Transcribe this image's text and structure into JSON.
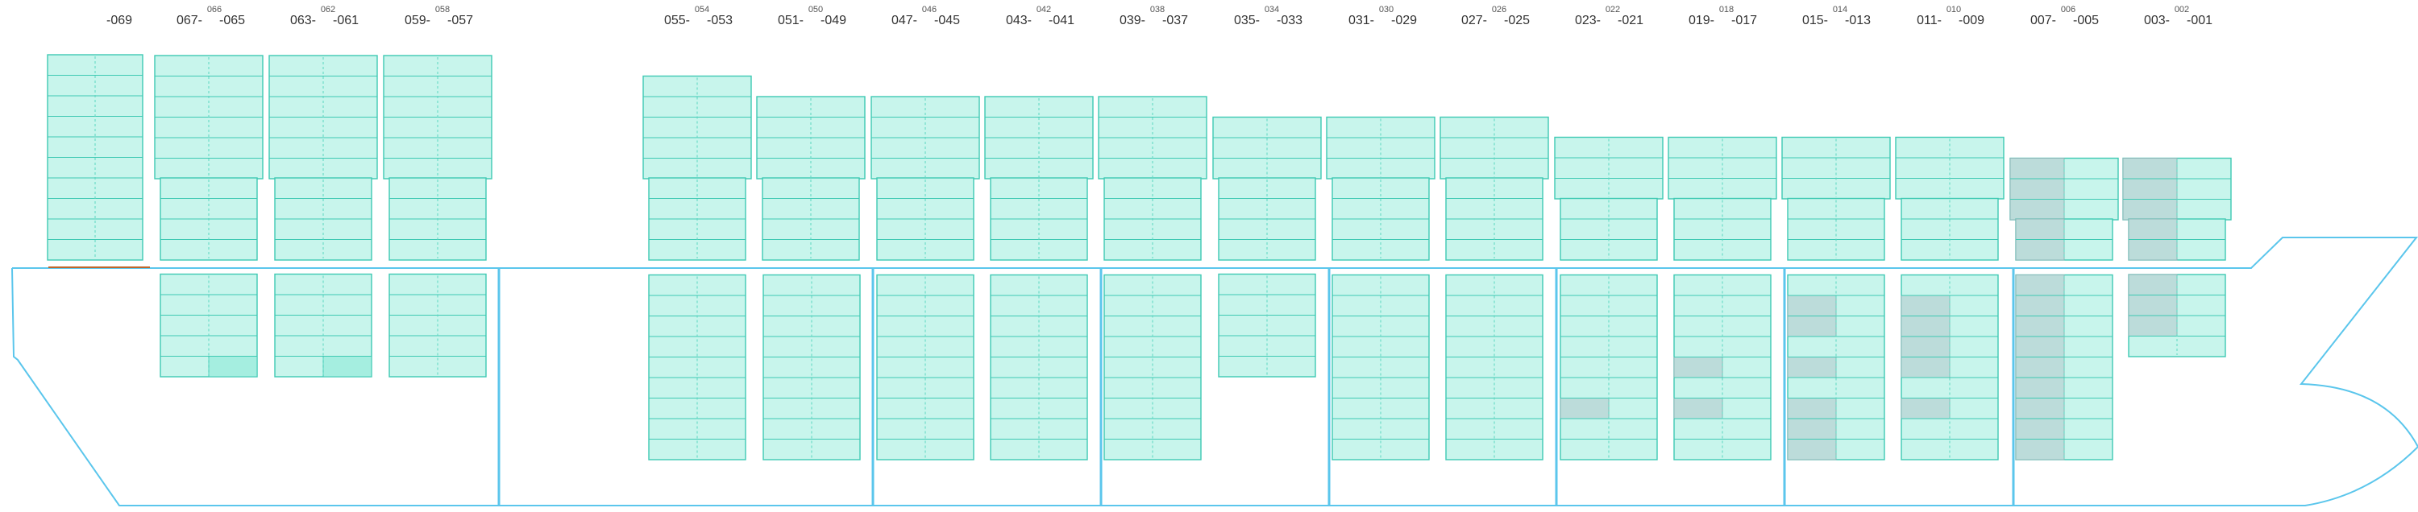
{
  "colors": {
    "hull": "#5bc6ec",
    "cell_fill": "#c8f5ec",
    "cell_stroke": "#3ec9b3",
    "cell_divider": "#5ad6c0",
    "cell_occupied": "#bcdcda",
    "cell_occupied_stroke": "#8ab7b8",
    "cell_highlight": "#a5eee0",
    "bay_label": "#333333",
    "bay_label_small": "#555555",
    "accent_line": "#c0662a"
  },
  "bays": [
    {
      "id": "bay-069",
      "left": "069",
      "right": "",
      "mid": ""
    },
    {
      "id": "bay-067-065",
      "left": "067",
      "right": "065",
      "mid": "066"
    },
    {
      "id": "bay-063-061",
      "left": "063",
      "right": "061",
      "mid": "062"
    },
    {
      "id": "bay-059-057",
      "left": "059",
      "right": "057",
      "mid": "058"
    },
    {
      "id": "bay-055-053",
      "left": "055",
      "right": "053",
      "mid": "054"
    },
    {
      "id": "bay-051-049",
      "left": "051",
      "right": "049",
      "mid": "050"
    },
    {
      "id": "bay-047-045",
      "left": "047",
      "right": "045",
      "mid": "046"
    },
    {
      "id": "bay-043-041",
      "left": "043",
      "right": "041",
      "mid": "042"
    },
    {
      "id": "bay-039-037",
      "left": "039",
      "right": "037",
      "mid": "038"
    },
    {
      "id": "bay-035-033",
      "left": "035",
      "right": "033",
      "mid": "034"
    },
    {
      "id": "bay-031-029",
      "left": "031",
      "right": "029",
      "mid": "030"
    },
    {
      "id": "bay-027-025",
      "left": "027",
      "right": "025",
      "mid": "026"
    },
    {
      "id": "bay-023-021",
      "left": "023",
      "right": "021",
      "mid": "022"
    },
    {
      "id": "bay-019-017",
      "left": "019",
      "right": "017",
      "mid": "018"
    },
    {
      "id": "bay-015-013",
      "left": "015",
      "right": "013",
      "mid": "014"
    },
    {
      "id": "bay-011-009",
      "left": "011",
      "right": "009",
      "mid": "010"
    },
    {
      "id": "bay-007-005",
      "left": "007",
      "right": "005",
      "mid": "006"
    },
    {
      "id": "bay-003-001",
      "left": "003",
      "right": "001",
      "mid": "002"
    }
  ]
}
